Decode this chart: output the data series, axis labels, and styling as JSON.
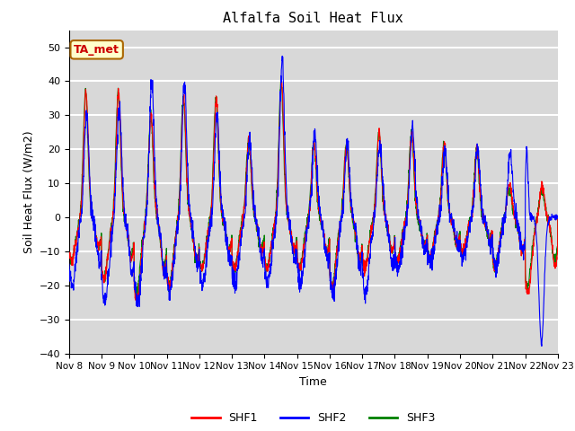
{
  "title": "Alfalfa Soil Heat Flux",
  "xlabel": "Time",
  "ylabel": "Soil Heat Flux (W/m2)",
  "ylim": [
    -40,
    55
  ],
  "bg_color": "#d8d8d8",
  "annotation_text": "TA_met",
  "annotation_bg": "#ffffcc",
  "annotation_border": "#aa6600",
  "annotation_text_color": "#cc0000",
  "shf1_color": "red",
  "shf2_color": "blue",
  "shf3_color": "green",
  "xtick_labels": [
    "Nov 8",
    "Nov 9",
    "Nov 10",
    "Nov 11",
    "Nov 12",
    "Nov 13",
    "Nov 14",
    "Nov 15",
    "Nov 16",
    "Nov 17",
    "Nov 18",
    "Nov 19",
    "Nov 20",
    "Nov 21",
    "Nov 22",
    "Nov 23"
  ],
  "yticks": [
    -40,
    -30,
    -20,
    -10,
    0,
    10,
    20,
    30,
    40,
    50
  ],
  "num_days": 15,
  "points_per_day": 144
}
